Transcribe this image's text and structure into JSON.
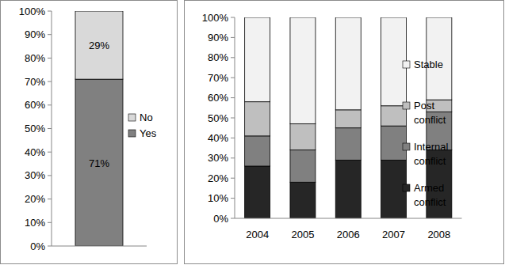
{
  "chart_data": [
    {
      "type": "bar",
      "stacked": true,
      "data_labels": true,
      "legend": "right",
      "grid": false,
      "categories": [
        null
      ],
      "series": [
        {
          "name": "Yes",
          "color": "#808080",
          "values": [
            71
          ],
          "value_labels": [
            "71%"
          ]
        },
        {
          "name": "No",
          "color": "#d9d9d9",
          "values": [
            29
          ],
          "value_labels": [
            "29%"
          ]
        }
      ],
      "ylim": [
        0,
        100
      ],
      "yticks": [
        {
          "value": 0,
          "label": "0%"
        },
        {
          "value": 10,
          "label": "10%"
        },
        {
          "value": 20,
          "label": "20%"
        },
        {
          "value": 30,
          "label": "30%"
        },
        {
          "value": 40,
          "label": "40%"
        },
        {
          "value": 50,
          "label": "50%"
        },
        {
          "value": 60,
          "label": "60%"
        },
        {
          "value": 70,
          "label": "70%"
        },
        {
          "value": 80,
          "label": "80%"
        },
        {
          "value": 90,
          "label": "90%"
        },
        {
          "value": 100,
          "label": "100%"
        }
      ]
    },
    {
      "type": "bar",
      "stacked": true,
      "data_labels": false,
      "legend": "right",
      "grid": false,
      "categories": [
        "2004",
        "2005",
        "2006",
        "2007",
        "2008"
      ],
      "series": [
        {
          "name": "Armed conflict",
          "color": "#262626",
          "values": [
            26,
            18,
            29,
            29,
            34
          ]
        },
        {
          "name": "Internal conflict",
          "color": "#808080",
          "values": [
            15,
            16,
            16,
            17,
            19
          ]
        },
        {
          "name": "Post conflict",
          "color": "#bfbfbf",
          "values": [
            17,
            13,
            9,
            10,
            6
          ]
        },
        {
          "name": "Stable",
          "color": "#f2f2f2",
          "values": [
            42,
            53,
            46,
            44,
            41
          ]
        }
      ],
      "ylim": [
        0,
        100
      ],
      "yticks": [
        {
          "value": 0,
          "label": "0%"
        },
        {
          "value": 10,
          "label": "10%"
        },
        {
          "value": 20,
          "label": "20%"
        },
        {
          "value": 30,
          "label": "30%"
        },
        {
          "value": 40,
          "label": "40%"
        },
        {
          "value": 50,
          "label": "50%"
        },
        {
          "value": 60,
          "label": "60%"
        },
        {
          "value": 70,
          "label": "70%"
        },
        {
          "value": 80,
          "label": "80%"
        },
        {
          "value": 90,
          "label": "90%"
        },
        {
          "value": 100,
          "label": "100%"
        }
      ]
    }
  ]
}
